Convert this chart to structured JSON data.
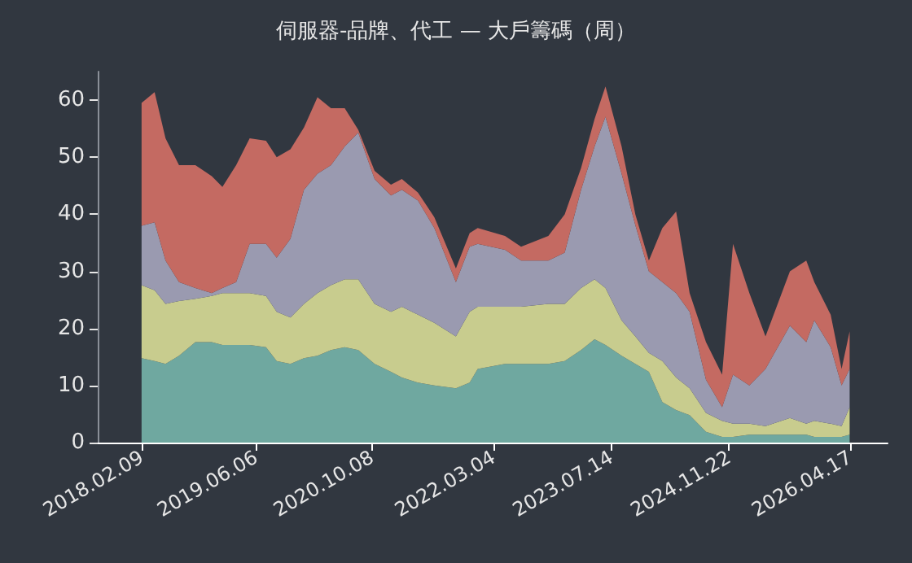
{
  "chart_data": {
    "type": "area",
    "title": "伺服器-品牌、代工 — 大戶籌碼（周）",
    "stacked": true,
    "grid": false,
    "marker": "none",
    "x": [
      "2018-02-09",
      "2018-04-05",
      "2018-05-21",
      "2018-07-17",
      "2018-09-24",
      "2018-12-02",
      "2019-01-16",
      "2019-03-15",
      "2019-05-11",
      "2019-07-19",
      "2019-09-02",
      "2019-10-30",
      "2019-12-26",
      "2020-02-21",
      "2020-04-18",
      "2020-06-15",
      "2020-08-11",
      "2020-10-19",
      "2020-12-27",
      "2021-02-11",
      "2021-04-20",
      "2021-06-28",
      "2021-09-27",
      "2021-11-24",
      "2021-12-28",
      "2022-04-22",
      "2022-06-29",
      "2022-10-22",
      "2022-12-30",
      "2023-03-09",
      "2023-05-05",
      "2023-06-20",
      "2023-08-27",
      "2023-10-24",
      "2023-12-20",
      "2024-02-15",
      "2024-04-13",
      "2024-06-09",
      "2024-08-17",
      "2024-10-24",
      "2024-12-09",
      "2025-02-16",
      "2025-04-25",
      "2025-08-06",
      "2025-10-14",
      "2025-11-17",
      "2026-01-25",
      "2026-03-12",
      "2026-04-15"
    ],
    "series": [
      {
        "color": "#6fa8a0",
        "values": [
          14.8,
          14.3,
          13.8,
          15.2,
          17.6,
          17.6,
          17.1,
          17.1,
          17.1,
          16.7,
          14.3,
          13.8,
          14.8,
          15.2,
          16.2,
          16.7,
          16.2,
          13.8,
          12.4,
          11.4,
          10.5,
          10,
          9.5,
          10.5,
          12.9,
          13.8,
          13.8,
          13.8,
          14.3,
          16.2,
          18.1,
          17.1,
          15.2,
          13.8,
          12.4,
          7.1,
          5.7,
          4.8,
          1.9,
          1,
          1,
          1.4,
          1.4,
          1.4,
          1.4,
          1,
          1,
          1,
          1.4
        ]
      },
      {
        "color": "#c8cc8e",
        "values": [
          12.8,
          12.4,
          10.5,
          9.6,
          7.6,
          8.1,
          9.1,
          9.1,
          9.1,
          9,
          8.6,
          8.1,
          9.5,
          11,
          11.4,
          11.9,
          12.4,
          10.5,
          10.5,
          12.4,
          11.9,
          11,
          9.1,
          12.4,
          10.9,
          10,
          10,
          10.5,
          10,
          10.9,
          10.5,
          10,
          6.2,
          4.8,
          3.3,
          7.2,
          5.7,
          4.7,
          3.3,
          2.8,
          2.3,
          1.9,
          1.5,
          2.9,
          1.9,
          2.8,
          2.3,
          1.9,
          4.8
        ]
      },
      {
        "color": "#9a9ab0",
        "values": [
          10.4,
          11.9,
          7.6,
          3.3,
          1.9,
          0.5,
          0.9,
          1.9,
          8.6,
          9.1,
          9.5,
          13.8,
          20,
          20.9,
          21,
          23.3,
          25.7,
          21.9,
          20.4,
          20.5,
          20,
          16.6,
          9.5,
          11.4,
          11,
          10,
          8.1,
          7.6,
          9,
          17.2,
          23.3,
          30,
          25.7,
          19.5,
          14.3,
          13.8,
          14.8,
          13.4,
          5.8,
          2.4,
          8.6,
          6.7,
          10,
          16.2,
          14.3,
          17.6,
          13.4,
          7.1,
          6.7
        ]
      },
      {
        "color": "#c46a62",
        "values": [
          21.5,
          22.8,
          21.4,
          20.5,
          21.5,
          20.5,
          17.7,
          20.5,
          18.5,
          18.1,
          17.6,
          15.7,
          10.9,
          13.4,
          10,
          6.7,
          0.5,
          1.4,
          1.9,
          1.9,
          1.4,
          1.9,
          2.4,
          2.4,
          2.8,
          2.4,
          2.4,
          4.3,
          6.7,
          3.8,
          4.8,
          5.3,
          4.8,
          1.9,
          1.9,
          9.5,
          14.3,
          3.3,
          6.6,
          5.7,
          22.9,
          16.2,
          5.7,
          9.5,
          14.3,
          6.7,
          5.7,
          2.9,
          6.6
        ]
      }
    ],
    "xlim": [
      "2017-08-08",
      "2026-09-22"
    ],
    "xticks": [
      {
        "value": "2018-02-09",
        "label": "2018.02.09"
      },
      {
        "value": "2019-06-06",
        "label": "2019.06.06"
      },
      {
        "value": "2020-10-08",
        "label": "2020.10.08"
      },
      {
        "value": "2022-03-04",
        "label": "2022.03.04"
      },
      {
        "value": "2023-07-14",
        "label": "2023.07.14"
      },
      {
        "value": "2024-11-22",
        "label": "2024.11.22"
      },
      {
        "value": "2026-04-17",
        "label": "2026.04.17"
      }
    ],
    "ylim": [
      0,
      65
    ],
    "yticks": [
      0,
      10,
      20,
      30,
      40,
      50,
      60
    ]
  }
}
